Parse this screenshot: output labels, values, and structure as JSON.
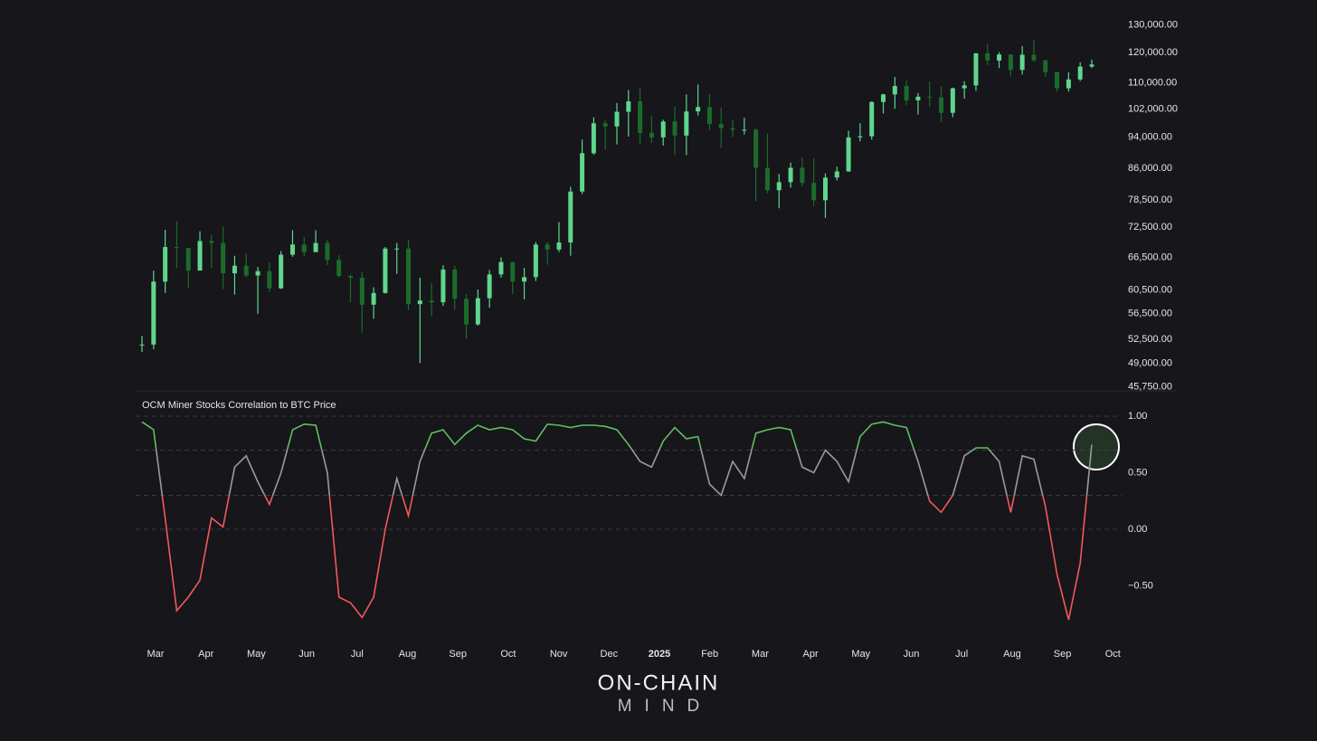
{
  "chart_data": [
    {
      "type": "candlestick",
      "log_scale": true,
      "colors": {
        "up": "#5fd68d",
        "down": "#1d6b2b"
      },
      "values": [
        51700,
        62000,
        68500,
        68300,
        64000,
        69700,
        69300,
        63500,
        64900,
        63100,
        63900,
        60800,
        67000,
        69000,
        67500,
        69300,
        66000,
        63000,
        62700,
        58000,
        60000,
        68200,
        68200,
        58100,
        58700,
        58400,
        64200,
        59000,
        54800,
        59100,
        63300,
        65600,
        62000,
        62800,
        69000,
        68000,
        69400,
        80400,
        89800,
        97900,
        97000,
        101200,
        104300,
        95200,
        94000,
        98400,
        94500,
        101300,
        102600,
        97700,
        96500,
        96100,
        96100,
        86100,
        80700,
        82600,
        86100,
        82400,
        78400,
        83700,
        85200,
        94000,
        94300,
        104100,
        106400,
        109000,
        104600,
        105700,
        105500,
        100900,
        108300,
        109200,
        119800,
        117300,
        119400,
        114200,
        119300,
        117400,
        113500,
        108300,
        111100,
        115300,
        116000
      ],
      "high": [
        53000,
        64000,
        72000,
        73800,
        68000,
        71700,
        71000,
        72700,
        66800,
        67200,
        64700,
        65500,
        67700,
        71900,
        70500,
        71900,
        70000,
        66900,
        63300,
        63800,
        61000,
        68500,
        69300,
        70000,
        62700,
        61700,
        65000,
        64900,
        59800,
        60600,
        64100,
        66500,
        64500,
        64500,
        69500,
        69500,
        73600,
        81500,
        93400,
        99600,
        98700,
        103800,
        107800,
        108300,
        99900,
        98900,
        102700,
        106400,
        109500,
        106500,
        102500,
        98800,
        99500,
        96500,
        95000,
        84600,
        87400,
        88700,
        88500,
        84700,
        86400,
        95800,
        97900,
        104300,
        106600,
        111900,
        110700,
        106800,
        110400,
        108900,
        108500,
        110500,
        119900,
        123200,
        120200,
        119300,
        122300,
        124400,
        117600,
        113400,
        113400,
        116700,
        117600
      ],
      "low": [
        50600,
        51000,
        60000,
        64500,
        60800,
        64500,
        64500,
        60700,
        59700,
        62800,
        56500,
        60200,
        60700,
        66600,
        66700,
        67500,
        65000,
        62800,
        58400,
        53500,
        55700,
        59900,
        63400,
        57100,
        49000,
        56100,
        57800,
        57200,
        52600,
        54600,
        57500,
        62700,
        59800,
        58900,
        62100,
        65100,
        67500,
        66800,
        79800,
        89400,
        90800,
        92100,
        94200,
        92100,
        92500,
        91800,
        89300,
        89300,
        100100,
        96000,
        91200,
        94100,
        94800,
        78200,
        80000,
        76600,
        81300,
        81600,
        77100,
        74500,
        83000,
        85100,
        92900,
        93400,
        100700,
        102100,
        103200,
        100400,
        102700,
        98200,
        99600,
        105100,
        107500,
        115700,
        114800,
        112000,
        112700,
        116800,
        111900,
        107300,
        107300,
        110600,
        114800
      ],
      "ylim": [
        45000,
        134000
      ],
      "yticks": [
        {
          "value": 130000,
          "label": "130,000.00"
        },
        {
          "value": 120000,
          "label": "120,000.00"
        },
        {
          "value": 110000,
          "label": "110,000.00"
        },
        {
          "value": 102000,
          "label": "102,000.00"
        },
        {
          "value": 94000,
          "label": "94,000.00"
        },
        {
          "value": 86000,
          "label": "86,000.00"
        },
        {
          "value": 78500,
          "label": "78,500.00"
        },
        {
          "value": 72500,
          "label": "72,500.00"
        },
        {
          "value": 66500,
          "label": "66,500.00"
        },
        {
          "value": 60500,
          "label": "60,500.00"
        },
        {
          "value": 56500,
          "label": "56,500.00"
        },
        {
          "value": 52500,
          "label": "52,500.00"
        },
        {
          "value": 49000,
          "label": "49,000.00"
        },
        {
          "value": 45750,
          "label": "45,750.00"
        }
      ]
    },
    {
      "type": "line",
      "title": "OCM Miner Stocks Correlation to BTC Price",
      "values": [
        0.95,
        0.88,
        0.1,
        -0.72,
        -0.6,
        -0.45,
        0.1,
        0.02,
        0.55,
        0.65,
        0.42,
        0.22,
        0.5,
        0.88,
        0.93,
        0.92,
        0.5,
        -0.6,
        -0.65,
        -0.78,
        -0.6,
        0.0,
        0.45,
        0.12,
        0.6,
        0.85,
        0.88,
        0.75,
        0.85,
        0.92,
        0.88,
        0.9,
        0.88,
        0.8,
        0.78,
        0.93,
        0.92,
        0.9,
        0.92,
        0.92,
        0.91,
        0.88,
        0.75,
        0.6,
        0.55,
        0.78,
        0.9,
        0.8,
        0.82,
        0.4,
        0.3,
        0.6,
        0.45,
        0.85,
        0.88,
        0.9,
        0.88,
        0.55,
        0.5,
        0.7,
        0.6,
        0.42,
        0.82,
        0.93,
        0.95,
        0.92,
        0.9,
        0.6,
        0.25,
        0.15,
        0.3,
        0.65,
        0.72,
        0.72,
        0.6,
        0.15,
        0.65,
        0.62,
        0.2,
        -0.4,
        -0.8,
        -0.3,
        0.75
      ],
      "thresholds": [
        0.3,
        0.7
      ],
      "colors": {
        "above": "#5fbf5f",
        "between": "#9a9a9f",
        "below": "#f05a5a"
      },
      "reference_lines": [
        1,
        0.7,
        0.3,
        0
      ],
      "ylim": [
        -1,
        1.2
      ],
      "yticks": [
        {
          "value": 1,
          "label": "1.00"
        },
        {
          "value": 0.5,
          "label": "0.50"
        },
        {
          "value": 0,
          "label": "0.00"
        },
        {
          "value": -0.5,
          "label": "−0.50"
        }
      ],
      "xtick_labels": [
        "Mar",
        "Apr",
        "May",
        "Jun",
        "Jul",
        "Aug",
        "Sep",
        "Oct",
        "Nov",
        "Dec",
        "2025",
        "Feb",
        "Mar",
        "Apr",
        "May",
        "Jun",
        "Jul",
        "Aug",
        "Sep",
        "Oct"
      ]
    }
  ],
  "brand": {
    "name": "ON-CHAIN",
    "sub": "MIND"
  }
}
